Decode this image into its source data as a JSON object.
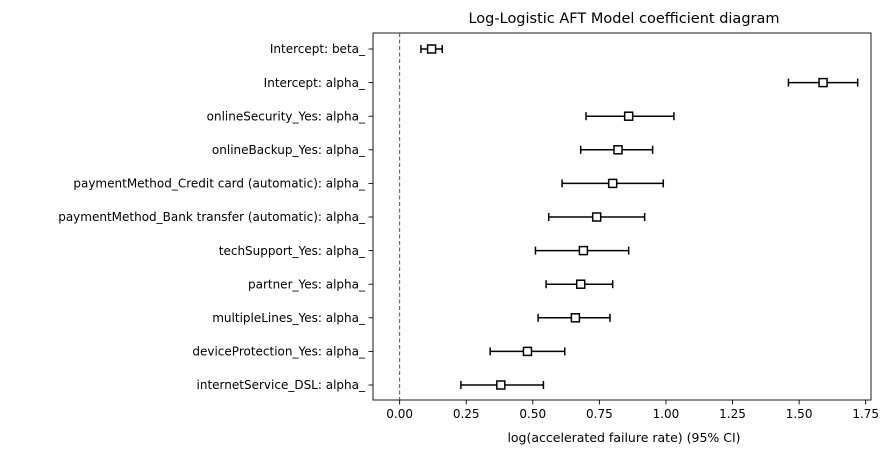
{
  "chart_data": {
    "type": "scatter",
    "title": "Log-Logistic AFT Model coefficient diagram",
    "xlabel": "log(accelerated failure rate) (95% CI)",
    "ylabel": "",
    "xlim": [
      -0.1,
      1.77
    ],
    "xticks": [
      0.0,
      0.25,
      0.5,
      0.75,
      1.0,
      1.25,
      1.5,
      1.75
    ],
    "xtick_labels": [
      "0.00",
      "0.25",
      "0.50",
      "0.75",
      "1.00",
      "1.25",
      "1.50",
      "1.75"
    ],
    "reference_line_x": 0,
    "grid": false,
    "marker": "open-square",
    "error_bars": "95% CI",
    "series": [
      {
        "categories": [
          "Intercept: beta_",
          "Intercept: alpha_",
          "onlineSecurity_Yes: alpha_",
          "onlineBackup_Yes: alpha_",
          "paymentMethod_Credit card (automatic): alpha_",
          "paymentMethod_Bank transfer (automatic): alpha_",
          "techSupport_Yes: alpha_",
          "partner_Yes: alpha_",
          "multipleLines_Yes: alpha_",
          "deviceProtection_Yes: alpha_",
          "internetService_DSL: alpha_"
        ],
        "values": [
          0.12,
          1.59,
          0.86,
          0.82,
          0.8,
          0.74,
          0.69,
          0.68,
          0.66,
          0.48,
          0.38
        ],
        "lower": [
          0.08,
          1.46,
          0.7,
          0.68,
          0.61,
          0.56,
          0.51,
          0.55,
          0.52,
          0.34,
          0.23
        ],
        "upper": [
          0.16,
          1.72,
          1.03,
          0.95,
          0.99,
          0.92,
          0.86,
          0.8,
          0.79,
          0.62,
          0.54
        ]
      }
    ]
  }
}
